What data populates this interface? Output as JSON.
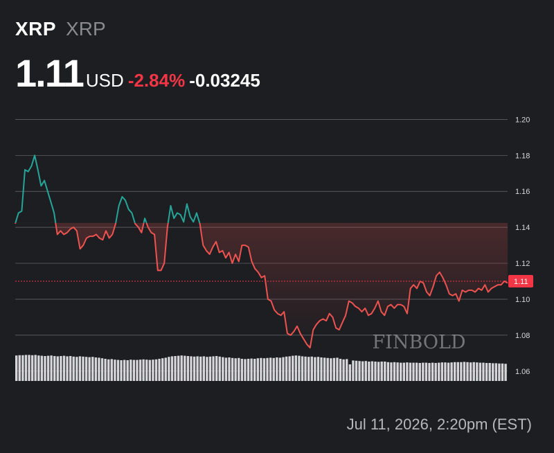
{
  "header": {
    "symbol": "XRP",
    "symbol_sub": "XRP",
    "price": "1.11",
    "currency": "USD",
    "change_pct": "-2.84%",
    "change_abs": "-0.03245"
  },
  "footer": {
    "timestamp": "Jul 11, 2026, 2:20pm (EST)"
  },
  "watermark": "FINBOLD",
  "colors": {
    "background": "#1d1e22",
    "up_line": "#26a69a",
    "down_line": "#ef5350",
    "grid": "#6b6b70",
    "volume": "#d6d6d8",
    "current_price": "#f23645"
  },
  "chart_data": {
    "type": "line",
    "series": [
      {
        "values": [
          1.142,
          1.148,
          1.149,
          1.172,
          1.171,
          1.174,
          1.18,
          1.172,
          1.163,
          1.166,
          1.16,
          1.154,
          1.148,
          1.136,
          1.138,
          1.136,
          1.137,
          1.139,
          1.14,
          1.138,
          1.128,
          1.13,
          1.134,
          1.135,
          1.135,
          1.136,
          1.134,
          1.133,
          1.138,
          1.134,
          1.136,
          1.142,
          1.152,
          1.157,
          1.155,
          1.15,
          1.148,
          1.142,
          1.14,
          1.137,
          1.145,
          1.14,
          1.137,
          1.136,
          1.116,
          1.116,
          1.12,
          1.14,
          1.152,
          1.145,
          1.148,
          1.147,
          1.143,
          1.153,
          1.146,
          1.143,
          1.148,
          1.142,
          1.13,
          1.127,
          1.125,
          1.129,
          1.132,
          1.126,
          1.127,
          1.123,
          1.126,
          1.12,
          1.125,
          1.121,
          1.13,
          1.13,
          1.129,
          1.121,
          1.117,
          1.115,
          1.112,
          1.113,
          1.1,
          1.099,
          1.094,
          1.092,
          1.091,
          1.093,
          1.081,
          1.08,
          1.082,
          1.085,
          1.081,
          1.078,
          1.075,
          1.073,
          1.083,
          1.086,
          1.088,
          1.089,
          1.088,
          1.092,
          1.09,
          1.084,
          1.083,
          1.087,
          1.091,
          1.099,
          1.098,
          1.096,
          1.095,
          1.093,
          1.095,
          1.091,
          1.092,
          1.095,
          1.099,
          1.093,
          1.091,
          1.096,
          1.097,
          1.095,
          1.097,
          1.097,
          1.096,
          1.092,
          1.106,
          1.108,
          1.106,
          1.11,
          1.109,
          1.104,
          1.102,
          1.107,
          1.113,
          1.115,
          1.112,
          1.108,
          1.103,
          1.102,
          1.103,
          1.099,
          1.105,
          1.104,
          1.105,
          1.105,
          1.104,
          1.106,
          1.105,
          1.108,
          1.104,
          1.106,
          1.107,
          1.108,
          1.108,
          1.11,
          1.109
        ]
      }
    ],
    "x_ticks": [
      "5",
      "6",
      "7",
      "8",
      "9",
      "10",
      "11"
    ],
    "y_ticks": [
      "1.20",
      "1.18",
      "1.16",
      "1.14",
      "1.12",
      "1.10",
      "1.08",
      "1.06"
    ],
    "ylim": [
      1.058,
      1.204
    ],
    "current_value": 1.11,
    "current_label": "1.11",
    "reference_value": 1.14245,
    "volume": [
      0.92,
      0.93,
      0.93,
      0.94,
      0.94,
      0.93,
      0.94,
      0.92,
      0.91,
      0.9,
      0.91,
      0.92,
      0.9,
      0.89,
      0.9,
      0.91,
      0.89,
      0.9,
      0.88,
      0.87,
      0.89,
      0.88,
      0.87,
      0.86,
      0.87,
      0.85,
      0.84,
      0.82,
      0.8,
      0.78,
      0.79,
      0.77,
      0.76,
      0.75,
      0.76,
      0.75,
      0.77,
      0.76,
      0.76,
      0.77,
      0.78,
      0.77,
      0.76,
      0.77,
      0.78,
      0.8,
      0.82,
      0.84,
      0.87,
      0.89,
      0.9,
      0.91,
      0.92,
      0.91,
      0.9,
      0.89,
      0.88,
      0.89,
      0.88,
      0.89,
      0.87,
      0.88,
      0.89,
      0.9,
      0.88,
      0.86,
      0.84,
      0.85,
      0.83,
      0.82,
      0.83,
      0.8,
      0.79,
      0.8,
      0.81,
      0.8,
      0.82,
      0.83,
      0.82,
      0.83,
      0.84,
      0.83,
      0.85,
      0.84,
      0.86,
      0.88,
      0.89,
      0.91,
      0.92,
      0.91,
      0.89,
      0.88,
      0.87,
      0.88,
      0.86,
      0.87,
      0.85,
      0.84,
      0.83,
      0.82,
      0.83,
      0.84,
      0.8,
      0.78,
      0.79,
      0.6,
      0.74,
      0.73,
      0.72,
      0.71,
      0.72,
      0.7,
      0.71,
      0.7,
      0.69,
      0.7,
      0.7,
      0.68,
      0.67,
      0.68,
      0.67,
      0.66,
      0.66,
      0.67,
      0.66,
      0.66,
      0.66,
      0.65,
      0.66,
      0.66,
      0.65,
      0.66,
      0.65,
      0.66,
      0.67,
      0.67,
      0.66,
      0.67,
      0.68,
      0.68,
      0.68,
      0.69,
      0.68,
      0.67,
      0.68,
      0.67,
      0.66,
      0.66,
      0.65,
      0.65,
      0.64,
      0.64,
      0.63,
      0.63,
      0.62
    ]
  }
}
